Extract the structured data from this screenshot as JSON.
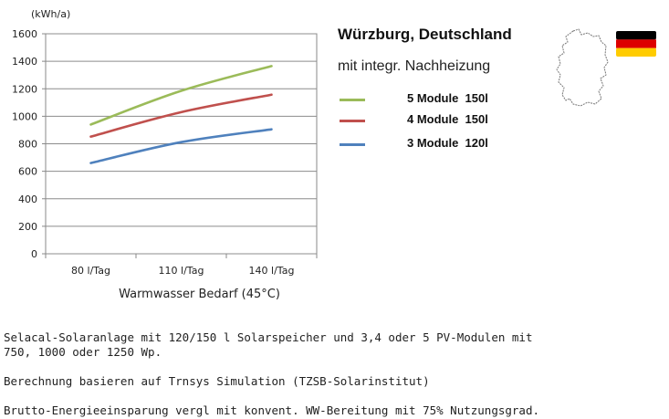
{
  "chart_data": {
    "type": "line",
    "unit_label": "(kWh/a)",
    "categories": [
      "80 l/Tag",
      "110 l/Tag",
      "140 l/Tag"
    ],
    "xlabel": "Warmwasser Bedarf (45°C)",
    "ylim": [
      0,
      1600
    ],
    "yticks": [
      0,
      200,
      400,
      600,
      800,
      1000,
      1200,
      1400,
      1600
    ],
    "grid": true,
    "series": [
      {
        "name": "5 Module  150l",
        "color": "#9bbb59",
        "values": [
          940,
          1185,
          1365
        ]
      },
      {
        "name": "4 Module  150l",
        "color": "#c0504d",
        "values": [
          852,
          1030,
          1157
        ]
      },
      {
        "name": "3 Module  120l",
        "color": "#4f81bd",
        "values": [
          660,
          812,
          905
        ]
      }
    ]
  },
  "info": {
    "title": "Würzburg, Deutschland",
    "subtitle": "mit integr. Nachheizung"
  },
  "flag_colors": [
    "#000000",
    "#dd0000",
    "#ffcc00"
  ],
  "notes": [
    "Selacal-Solaranlage mit 120/150 l Solarspeicher und 3,4 oder 5 PV-Modulen mit 750, 1000 oder 1250 Wp.",
    "Berechnung basieren auf Trnsys Simulation (TZSB-Solarinstitut)",
    "Brutto-Energieeinsparung vergl mit konvent. WW-Bereitung mit 75% Nutzungsgrad."
  ]
}
